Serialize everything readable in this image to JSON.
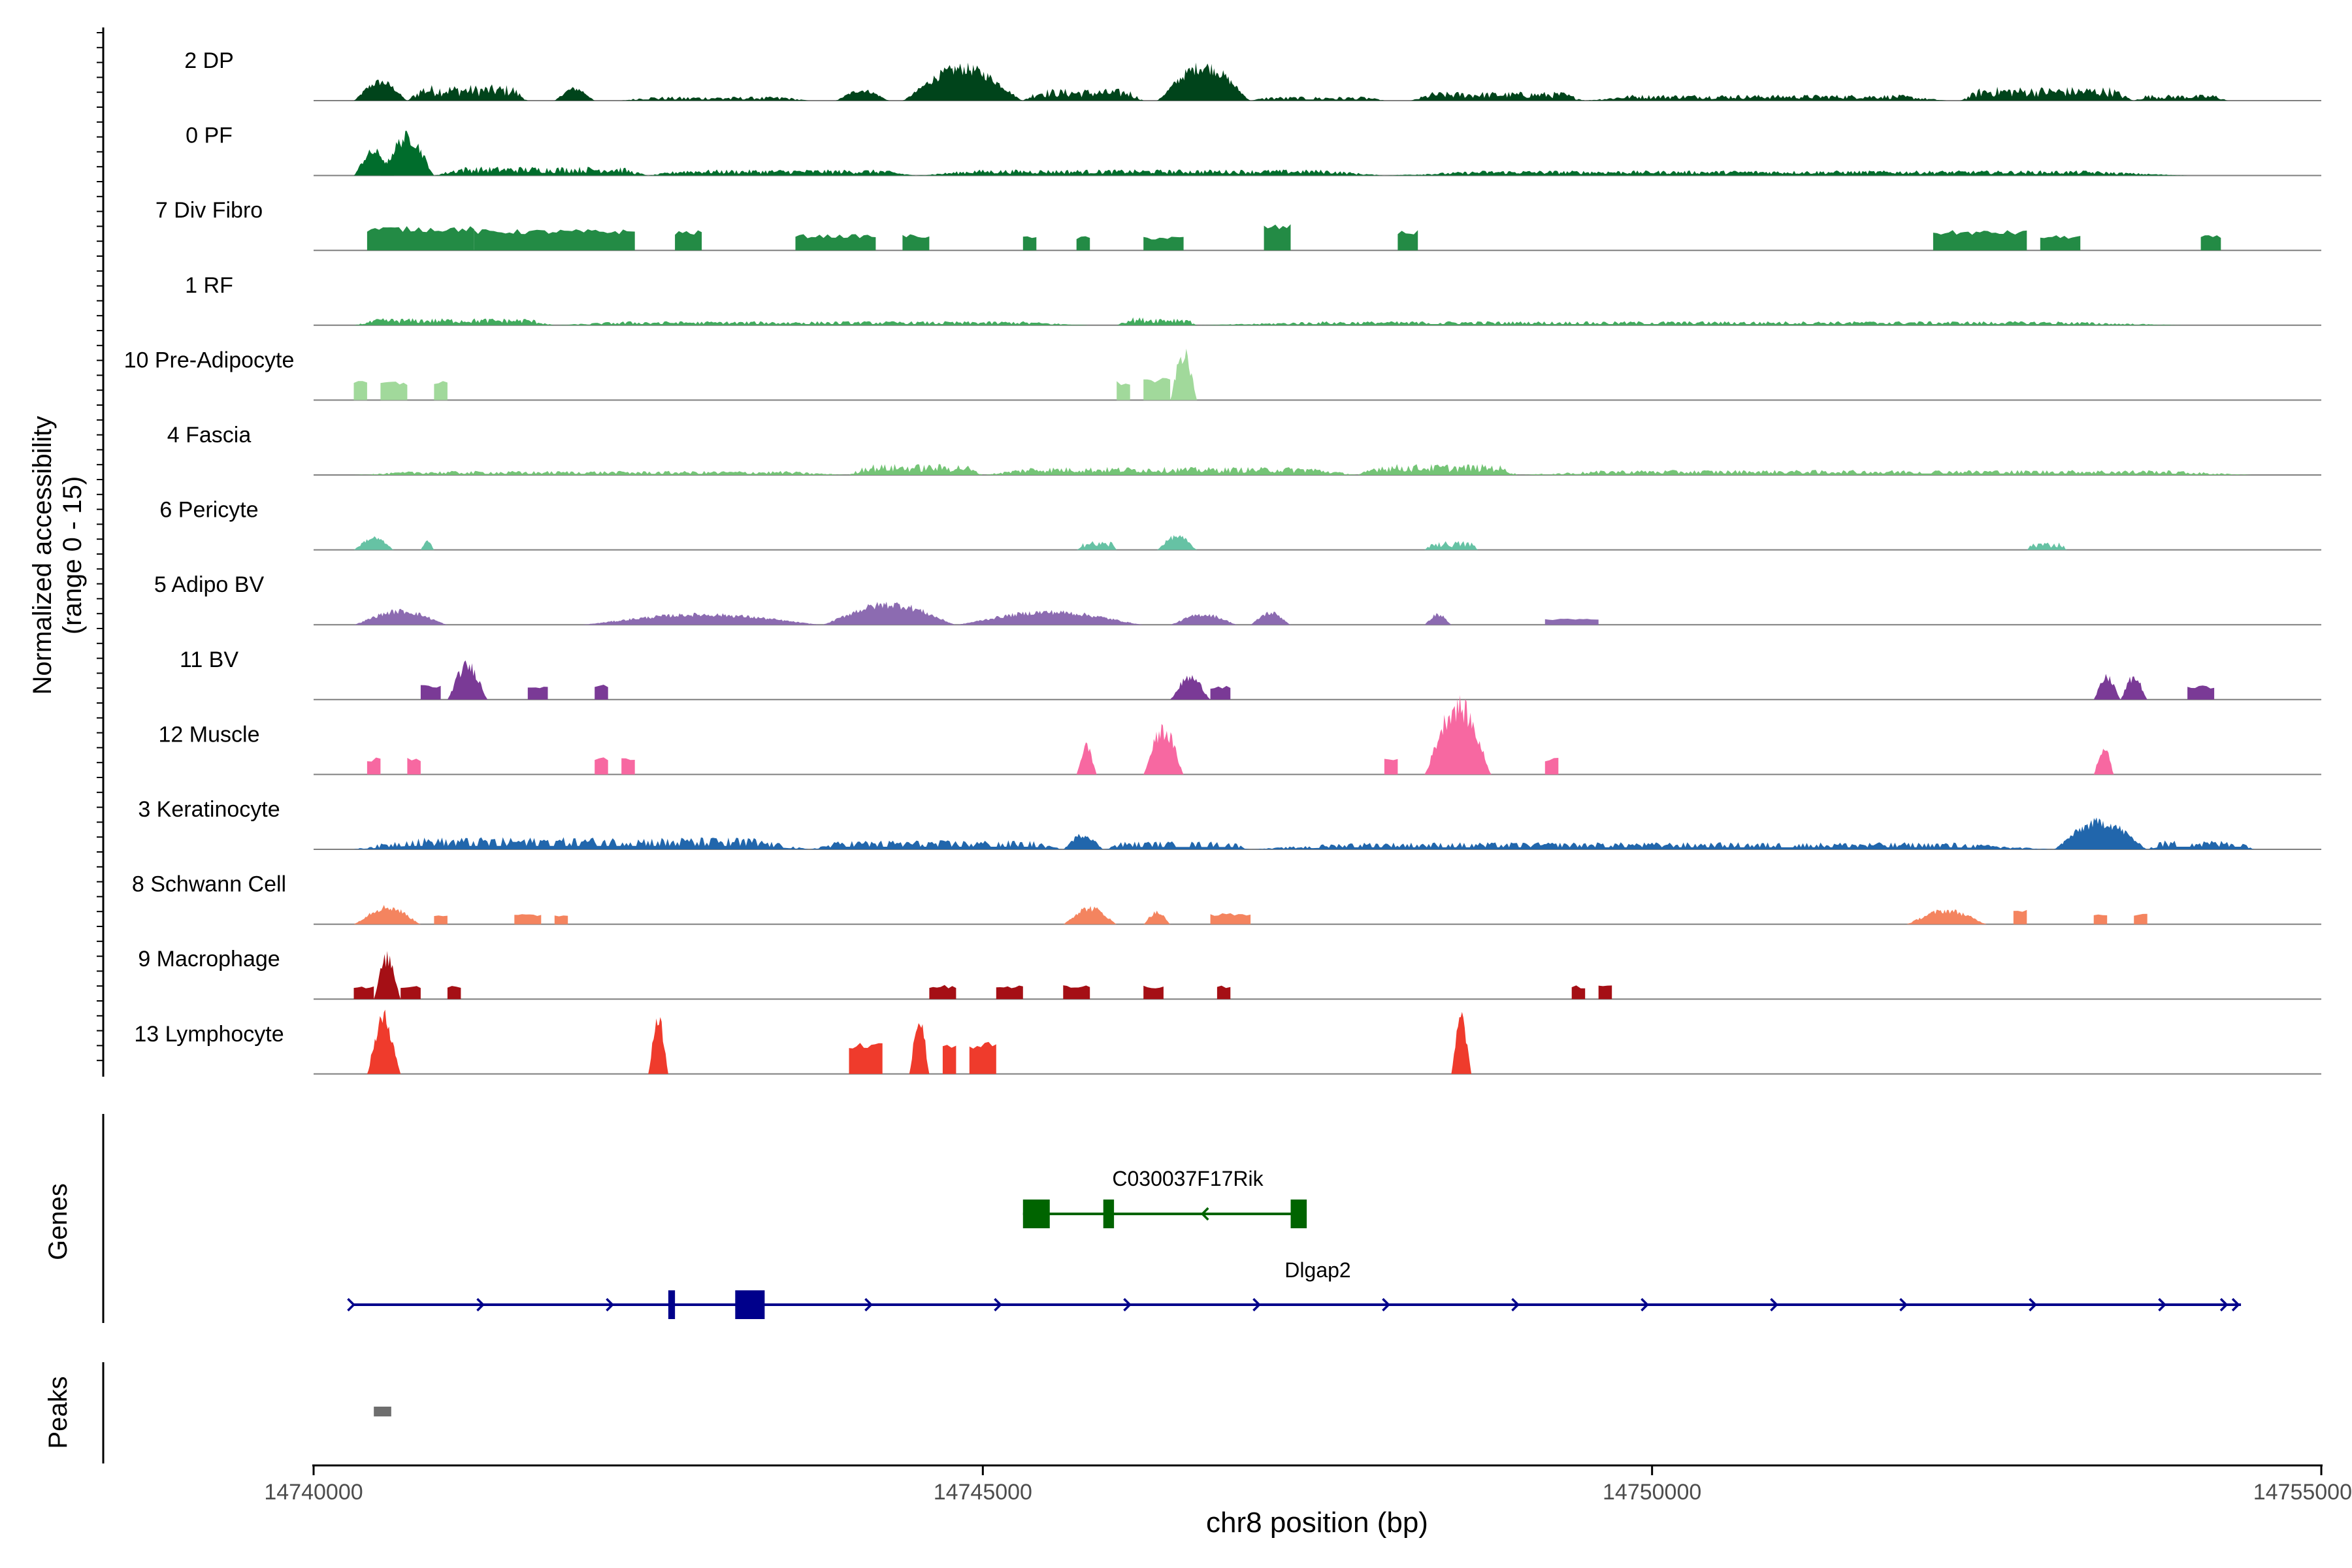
{
  "chart_data": {
    "type": "area",
    "chromosome": "chr8",
    "region": [
      14740000,
      14755000
    ],
    "xlabel": "chr8 position (bp)",
    "xticks": [
      14740000,
      14745000,
      14750000,
      14755000
    ],
    "xtick_labels": [
      "14740000",
      "14745000",
      "14750000",
      "14755000"
    ],
    "ylabel_line1": "Normalized accessibility",
    "ylabel_line2": "(range 0 - 15)",
    "ylim": [
      0,
      15
    ],
    "genes_label": "Genes",
    "peaks_label": "Peaks",
    "tracks": [
      {
        "name": "2 DP",
        "color": "#00441b",
        "peaks": [
          [
            14740300,
            14740700,
            2.2,
            "bump"
          ],
          [
            14740700,
            14741600,
            1.6,
            "smooth"
          ],
          [
            14741800,
            14742100,
            1.4,
            "bump"
          ],
          [
            14742300,
            14743700,
            0.4,
            "noise"
          ],
          [
            14743900,
            14744300,
            1.2,
            "bump"
          ],
          [
            14744400,
            14745300,
            3.8,
            "bump"
          ],
          [
            14745300,
            14746200,
            1.2,
            "smooth"
          ],
          [
            14746300,
            14747000,
            4.0,
            "bump"
          ],
          [
            14747000,
            14748000,
            0.4,
            "noise"
          ],
          [
            14748200,
            14749500,
            0.9,
            "smooth"
          ],
          [
            14749500,
            14752200,
            0.6,
            "smooth"
          ],
          [
            14752300,
            14753600,
            1.4,
            "smooth"
          ],
          [
            14753600,
            14754300,
            0.6,
            "smooth"
          ]
        ]
      },
      {
        "name": "0 PF",
        "color": "#006d2c",
        "peaks": [
          [
            14740300,
            14740600,
            2.8,
            "bump"
          ],
          [
            14740500,
            14740900,
            4.5,
            "bump"
          ],
          [
            14740900,
            14742500,
            0.9,
            "smooth"
          ],
          [
            14742500,
            14744500,
            0.6,
            "smooth"
          ],
          [
            14744500,
            14748000,
            0.6,
            "smooth"
          ],
          [
            14748000,
            14754000,
            0.5,
            "smooth"
          ]
        ]
      },
      {
        "name": "7 Div Fibro",
        "color": "#238b45",
        "peaks": [
          [
            14740400,
            14741200,
            2.4,
            "blocky"
          ],
          [
            14741200,
            14742400,
            2.1,
            "blocky"
          ],
          [
            14742700,
            14742900,
            2.0,
            "blocky"
          ],
          [
            14743600,
            14744200,
            1.6,
            "blocky"
          ],
          [
            14744400,
            14744600,
            1.6,
            "blocky"
          ],
          [
            14745300,
            14745400,
            1.4,
            "blocky"
          ],
          [
            14745700,
            14745800,
            1.4,
            "blocky"
          ],
          [
            14746200,
            14746500,
            1.4,
            "blocky"
          ],
          [
            14747100,
            14747300,
            2.6,
            "blocky"
          ],
          [
            14748100,
            14748250,
            2.0,
            "blocky"
          ],
          [
            14752100,
            14752800,
            2.0,
            "blocky"
          ],
          [
            14752900,
            14753200,
            1.5,
            "blocky"
          ],
          [
            14754100,
            14754250,
            1.5,
            "blocky"
          ]
        ]
      },
      {
        "name": "1 RF",
        "color": "#41ab5d",
        "peaks": [
          [
            14740300,
            14741800,
            0.7,
            "smooth"
          ],
          [
            14741800,
            14745800,
            0.4,
            "noise"
          ],
          [
            14746000,
            14746600,
            0.8,
            "smooth"
          ],
          [
            14746600,
            14754000,
            0.4,
            "noise"
          ]
        ]
      },
      {
        "name": "10 Pre-Adipocyte",
        "color": "#a1d99b",
        "peaks": [
          [
            14740300,
            14740400,
            1.9,
            "blocky"
          ],
          [
            14740500,
            14740700,
            1.9,
            "blocky"
          ],
          [
            14740900,
            14741000,
            2.0,
            "blocky"
          ],
          [
            14746000,
            14746100,
            1.9,
            "blocky"
          ],
          [
            14746200,
            14746400,
            2.2,
            "blocky"
          ],
          [
            14746400,
            14746600,
            5.4,
            "bump"
          ]
        ]
      },
      {
        "name": "4 Fascia",
        "color": "#74c476",
        "peaks": [
          [
            14740300,
            14744000,
            0.4,
            "noise"
          ],
          [
            14744000,
            14745000,
            1.1,
            "smooth"
          ],
          [
            14745000,
            14747800,
            0.8,
            "smooth"
          ],
          [
            14747800,
            14749000,
            1.1,
            "smooth"
          ],
          [
            14749000,
            14754500,
            0.5,
            "noise"
          ]
        ]
      },
      {
        "name": "6 Pericyte",
        "color": "#66c2a4",
        "peaks": [
          [
            14740300,
            14740600,
            1.4,
            "bump"
          ],
          [
            14740800,
            14740900,
            1.0,
            "bump"
          ],
          [
            14745700,
            14746000,
            0.9,
            "smooth"
          ],
          [
            14746300,
            14746600,
            1.6,
            "bump"
          ],
          [
            14748300,
            14748700,
            0.9,
            "smooth"
          ],
          [
            14752800,
            14753100,
            0.8,
            "smooth"
          ]
        ]
      },
      {
        "name": "5 Adipo BV",
        "color": "#8c6bb1",
        "peaks": [
          [
            14740300,
            14741000,
            1.6,
            "bump"
          ],
          [
            14742000,
            14743800,
            1.2,
            "bump"
          ],
          [
            14743800,
            14744800,
            2.4,
            "bump"
          ],
          [
            14744800,
            14746200,
            1.5,
            "bump"
          ],
          [
            14746400,
            14746900,
            1.2,
            "bump"
          ],
          [
            14747000,
            14747300,
            1.4,
            "bump"
          ],
          [
            14748300,
            14748500,
            1.2,
            "bump"
          ],
          [
            14749200,
            14749600,
            0.6,
            "blocky"
          ]
        ]
      },
      {
        "name": "11 BV",
        "color": "#7a3a96",
        "peaks": [
          [
            14740800,
            14740950,
            1.5,
            "blocky"
          ],
          [
            14741000,
            14741300,
            4.0,
            "bump"
          ],
          [
            14741600,
            14741750,
            1.5,
            "blocky"
          ],
          [
            14742100,
            14742200,
            1.5,
            "blocky"
          ],
          [
            14746400,
            14746700,
            2.6,
            "bump"
          ],
          [
            14746700,
            14746850,
            1.4,
            "blocky"
          ],
          [
            14753300,
            14753500,
            2.6,
            "bump"
          ],
          [
            14753500,
            14753700,
            2.6,
            "bump"
          ],
          [
            14754000,
            14754200,
            1.4,
            "blocky"
          ]
        ]
      },
      {
        "name": "12 Muscle",
        "color": "#f768a1",
        "peaks": [
          [
            14740400,
            14740500,
            1.7,
            "blocky"
          ],
          [
            14740700,
            14740800,
            1.7,
            "blocky"
          ],
          [
            14742100,
            14742200,
            1.7,
            "blocky"
          ],
          [
            14742300,
            14742400,
            1.7,
            "blocky"
          ],
          [
            14745700,
            14745850,
            3.3,
            "bump"
          ],
          [
            14746200,
            14746500,
            5.2,
            "bump"
          ],
          [
            14748000,
            14748100,
            1.7,
            "blocky"
          ],
          [
            14748300,
            14748800,
            8.0,
            "bump"
          ],
          [
            14749200,
            14749300,
            1.7,
            "blocky"
          ],
          [
            14753300,
            14753450,
            3.1,
            "bump"
          ]
        ]
      },
      {
        "name": "3 Keratinocyte",
        "color": "#2166ac",
        "peaks": [
          [
            14740300,
            14743700,
            1.2,
            "noise"
          ],
          [
            14743700,
            14745600,
            0.9,
            "noise"
          ],
          [
            14745600,
            14745900,
            1.7,
            "bump"
          ],
          [
            14745900,
            14747000,
            0.8,
            "noise"
          ],
          [
            14747000,
            14753000,
            0.7,
            "noise"
          ],
          [
            14753000,
            14753700,
            3.2,
            "bump"
          ],
          [
            14753700,
            14754500,
            0.9,
            "noise"
          ]
        ]
      },
      {
        "name": "8 Schwann Cell",
        "color": "#f4845f",
        "peaks": [
          [
            14740300,
            14740800,
            2.0,
            "bump"
          ],
          [
            14740900,
            14741000,
            1.0,
            "blocky"
          ],
          [
            14741500,
            14741700,
            1.0,
            "blocky"
          ],
          [
            14741800,
            14741900,
            1.0,
            "blocky"
          ],
          [
            14745600,
            14746000,
            1.9,
            "bump"
          ],
          [
            14746200,
            14746400,
            1.4,
            "bump"
          ],
          [
            14746700,
            14747000,
            1.1,
            "blocky"
          ],
          [
            14751900,
            14752500,
            1.6,
            "bump"
          ],
          [
            14752700,
            14752800,
            1.6,
            "blocky"
          ],
          [
            14753300,
            14753400,
            1.1,
            "blocky"
          ],
          [
            14753600,
            14753700,
            1.1,
            "blocky"
          ]
        ]
      },
      {
        "name": "9 Macrophage",
        "color": "#a50f15",
        "peaks": [
          [
            14740300,
            14740450,
            1.4,
            "blocky"
          ],
          [
            14740450,
            14740650,
            4.8,
            "bump"
          ],
          [
            14740650,
            14740800,
            1.4,
            "blocky"
          ],
          [
            14741000,
            14741100,
            1.4,
            "blocky"
          ],
          [
            14744600,
            14744800,
            1.4,
            "blocky"
          ],
          [
            14745100,
            14745300,
            1.4,
            "blocky"
          ],
          [
            14745600,
            14745800,
            1.4,
            "blocky"
          ],
          [
            14746200,
            14746350,
            1.4,
            "blocky"
          ],
          [
            14746750,
            14746850,
            1.4,
            "blocky"
          ],
          [
            14749400,
            14749500,
            1.4,
            "blocky"
          ],
          [
            14749600,
            14749700,
            1.4,
            "blocky"
          ]
        ]
      },
      {
        "name": "13 Lymphocyte",
        "color": "#ef3b2c",
        "peaks": [
          [
            14740400,
            14740650,
            6.5,
            "bump"
          ],
          [
            14742500,
            14742650,
            6.5,
            "bump"
          ],
          [
            14744000,
            14744250,
            3.2,
            "blocky"
          ],
          [
            14744450,
            14744600,
            6.5,
            "bump"
          ],
          [
            14744700,
            14744800,
            3.2,
            "blocky"
          ],
          [
            14744900,
            14745100,
            3.2,
            "blocky"
          ],
          [
            14748500,
            14748650,
            6.5,
            "bump"
          ]
        ]
      }
    ],
    "genes": [
      {
        "name": "C030037F17Rik",
        "color": "#006400",
        "start": 14745300,
        "end": 14747400,
        "strand": "-",
        "exons": [
          [
            14745300,
            14745500
          ],
          [
            14745900,
            14745980
          ],
          [
            14747300,
            14747420
          ]
        ]
      },
      {
        "name": "Dlgap2",
        "color": "#00008b",
        "start": 14740300,
        "end": 14754400,
        "strand": "+",
        "exons": [
          [
            14742650,
            14742700
          ],
          [
            14743150,
            14743370
          ]
        ]
      }
    ],
    "peaks_ranges": [
      [
        14740450,
        14740580
      ]
    ]
  }
}
